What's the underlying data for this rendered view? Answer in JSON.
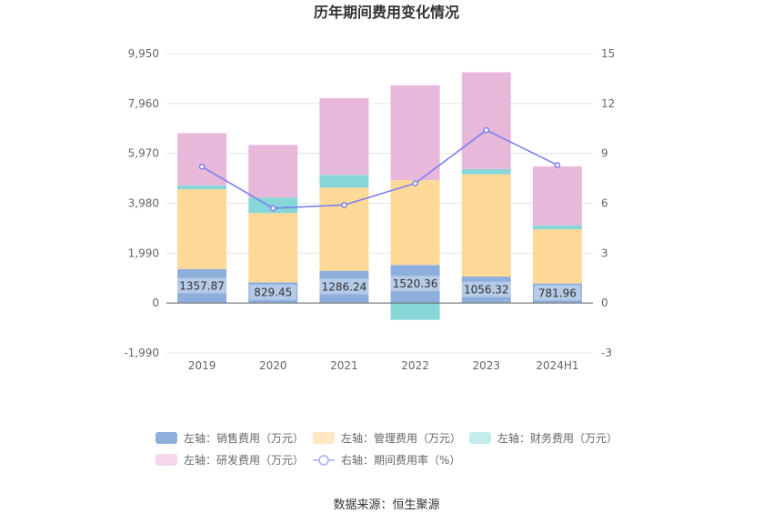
{
  "chart_data": {
    "type": "bar",
    "stacked": true,
    "title": "历年期间费用变化情况",
    "categories": [
      "2019",
      "2020",
      "2021",
      "2022",
      "2023",
      "2024H1"
    ],
    "left_axis": {
      "min": -1990,
      "max": 9950,
      "ticks": [
        "9,950",
        "7,960",
        "5,970",
        "3,980",
        "1,990",
        "0",
        "-1,990"
      ],
      "tick_values": [
        9950,
        7960,
        5970,
        3980,
        1990,
        0,
        -1990
      ]
    },
    "right_axis": {
      "min": -3,
      "max": 15,
      "ticks": [
        "15",
        "12",
        "9",
        "6",
        "3",
        "0",
        "-3"
      ],
      "tick_values": [
        15,
        12,
        9,
        6,
        3,
        0,
        -3
      ]
    },
    "series": [
      {
        "name": "左轴：销售费用（万元）",
        "axis": "left",
        "kind": "bar",
        "color": "#8eaedb",
        "values": [
          1357.87,
          829.45,
          1286.24,
          1520.36,
          1056.32,
          781.96
        ],
        "labels": [
          "1357.87",
          "829.45",
          "1286.24",
          "1520.36",
          "1056.32",
          "781.96"
        ]
      },
      {
        "name": "左轴：管理费用（万元）",
        "axis": "left",
        "kind": "bar",
        "color": "#fed998",
        "values": [
          3180,
          2760,
          3320,
          3380,
          4080,
          2160
        ]
      },
      {
        "name": "左轴：财务费用（万元）",
        "axis": "left",
        "kind": "bar",
        "color": "#87d6d8",
        "values": [
          160,
          620,
          510,
          -670,
          210,
          160
        ]
      },
      {
        "name": "左轴：研发费用（万元）",
        "axis": "left",
        "kind": "bar",
        "color": "#e8b8da",
        "values": [
          2080,
          2100,
          3060,
          3790,
          3860,
          2350
        ]
      },
      {
        "name": "右轴：期间费用率（%）",
        "axis": "right",
        "kind": "line",
        "color": "#7b7ff0",
        "values": [
          8.2,
          5.7,
          5.9,
          7.2,
          10.4,
          8.3
        ]
      }
    ],
    "legend_position": "bottom",
    "source": "数据来源：恒生聚源"
  }
}
